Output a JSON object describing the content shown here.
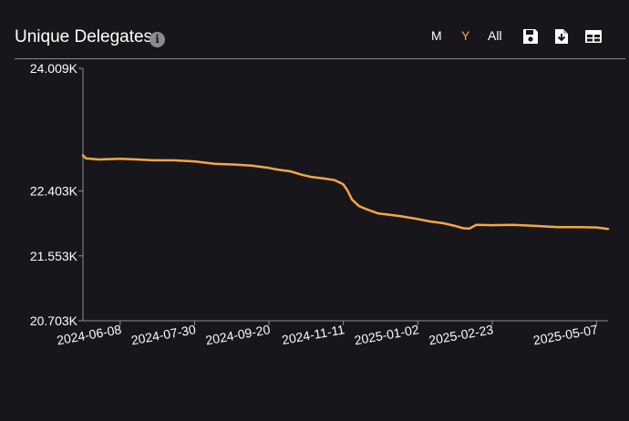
{
  "header": {
    "title": "Unique Delegates",
    "info_icon": "info-icon",
    "info_symbol": "i",
    "ranges": [
      {
        "label": "M",
        "active": false
      },
      {
        "label": "Y",
        "active": true
      },
      {
        "label": "All",
        "active": false
      }
    ],
    "tools": [
      "save-icon",
      "download-icon",
      "table-icon"
    ]
  },
  "colors": {
    "background": "#17161a",
    "line": "#f5a745",
    "active_range": "#f5a745",
    "text": "#ffffff"
  },
  "chart_data": {
    "type": "line",
    "title": "Unique Delegates",
    "xlabel": "",
    "ylabel": "",
    "x_start": "2024-05-13",
    "x_end": "2025-05-15",
    "xlim": [
      "2024-05-13",
      "2025-05-15"
    ],
    "ylim": [
      20703,
      24009
    ],
    "grid": false,
    "legend": "none",
    "y_ticks": [
      {
        "value": 20703,
        "label": "20.703K"
      },
      {
        "value": 21553,
        "label": "21.553K"
      },
      {
        "value": 22403,
        "label": "22.403K"
      },
      {
        "value": 24009,
        "label": "24.009K"
      }
    ],
    "x_ticks": [
      {
        "date": "2024-06-08",
        "label": "2024-06-08"
      },
      {
        "date": "2024-07-30",
        "label": "2024-07-30"
      },
      {
        "date": "2024-09-20",
        "label": "2024-09-20"
      },
      {
        "date": "2024-11-11",
        "label": "2024-11-11"
      },
      {
        "date": "2025-01-02",
        "label": "2025-01-02"
      },
      {
        "date": "2025-02-23",
        "label": "2025-02-23"
      },
      {
        "date": "2025-05-07",
        "label": "2025-05-07"
      }
    ],
    "series": [
      {
        "values": [
          {
            "x": "2024-05-13",
            "y": 22870
          },
          {
            "x": "2024-05-15",
            "y": 22830
          },
          {
            "x": "2024-05-24",
            "y": 22815
          },
          {
            "x": "2024-06-08",
            "y": 22825
          },
          {
            "x": "2024-06-20",
            "y": 22815
          },
          {
            "x": "2024-07-01",
            "y": 22805
          },
          {
            "x": "2024-07-15",
            "y": 22805
          },
          {
            "x": "2024-07-30",
            "y": 22790
          },
          {
            "x": "2024-08-13",
            "y": 22760
          },
          {
            "x": "2024-08-26",
            "y": 22750
          },
          {
            "x": "2024-09-08",
            "y": 22735
          },
          {
            "x": "2024-09-20",
            "y": 22705
          },
          {
            "x": "2024-09-27",
            "y": 22680
          },
          {
            "x": "2024-10-05",
            "y": 22660
          },
          {
            "x": "2024-10-13",
            "y": 22615
          },
          {
            "x": "2024-10-20",
            "y": 22585
          },
          {
            "x": "2024-10-29",
            "y": 22565
          },
          {
            "x": "2024-11-05",
            "y": 22545
          },
          {
            "x": "2024-11-11",
            "y": 22490
          },
          {
            "x": "2024-11-14",
            "y": 22405
          },
          {
            "x": "2024-11-17",
            "y": 22290
          },
          {
            "x": "2024-11-22",
            "y": 22205
          },
          {
            "x": "2024-11-27",
            "y": 22165
          },
          {
            "x": "2024-12-05",
            "y": 22110
          },
          {
            "x": "2024-12-20",
            "y": 22075
          },
          {
            "x": "2025-01-02",
            "y": 22035
          },
          {
            "x": "2025-01-10",
            "y": 22005
          },
          {
            "x": "2025-01-20",
            "y": 21980
          },
          {
            "x": "2025-01-28",
            "y": 21945
          },
          {
            "x": "2025-02-03",
            "y": 21915
          },
          {
            "x": "2025-02-07",
            "y": 21910
          },
          {
            "x": "2025-02-12",
            "y": 21960
          },
          {
            "x": "2025-02-23",
            "y": 21955
          },
          {
            "x": "2025-03-10",
            "y": 21960
          },
          {
            "x": "2025-03-25",
            "y": 21945
          },
          {
            "x": "2025-04-10",
            "y": 21930
          },
          {
            "x": "2025-04-25",
            "y": 21930
          },
          {
            "x": "2025-05-07",
            "y": 21925
          },
          {
            "x": "2025-05-15",
            "y": 21905
          }
        ]
      }
    ]
  }
}
